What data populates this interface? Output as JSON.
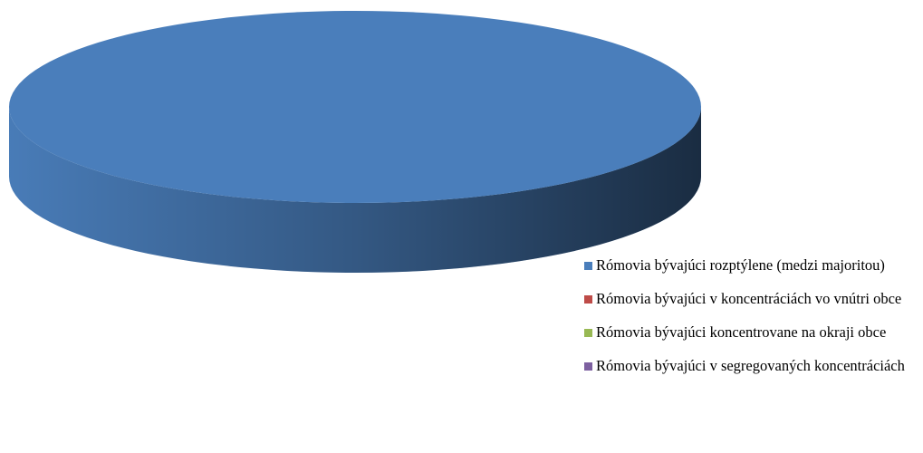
{
  "chart_data": {
    "type": "pie",
    "categories": [
      "Rómovia bývajúci rozptýlene (medzi majoritou)",
      "Rómovia bývajúci v koncentráciách vo vnútri obce",
      "Rómovia bývajúci koncentrovane na okraji obce",
      "Rómovia bývajúci v segregovaných koncentráciách"
    ],
    "values": [
      100,
      0,
      0,
      0
    ],
    "colors": [
      "#4a7ebb",
      "#be4b48",
      "#98b954",
      "#7d60a0"
    ],
    "legend": "right"
  }
}
